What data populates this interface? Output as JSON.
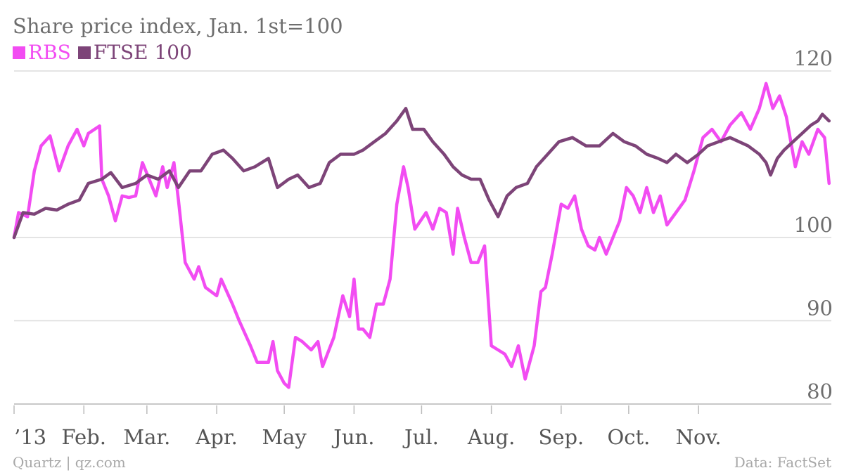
{
  "title": "Share price index, Jan. 1st=100",
  "legend": [
    {
      "label": "RBS",
      "color": "#f24cf2"
    },
    {
      "label": "FTSE 100",
      "color": "#7d4478"
    }
  ],
  "footer": {
    "source_left": "Quartz | qz.com",
    "source_right": "Data: FactSet"
  },
  "chart_data": {
    "type": "line",
    "ylim": [
      80,
      120
    ],
    "yticks": [
      80,
      90,
      100,
      120
    ],
    "ytick_labels": [
      "80",
      "90",
      "100",
      "120"
    ],
    "grid": true,
    "x_months": [
      "’13",
      "Feb.",
      "Mar.",
      "Apr.",
      "May",
      "Jun.",
      "Jul.",
      "Aug.",
      "Sep.",
      "Oct.",
      "Nov."
    ],
    "series": [
      {
        "name": "RBS",
        "color": "#f24cf2",
        "points": [
          [
            "2013-01-01",
            100.0
          ],
          [
            "2013-01-03",
            103.0
          ],
          [
            "2013-01-07",
            102.5
          ],
          [
            "2013-01-10",
            108.0
          ],
          [
            "2013-01-13",
            111.0
          ],
          [
            "2013-01-17",
            112.2
          ],
          [
            "2013-01-21",
            108.0
          ],
          [
            "2013-01-25",
            111.0
          ],
          [
            "2013-01-29",
            113.0
          ],
          [
            "2013-02-01",
            111.0
          ],
          [
            "2013-02-03",
            112.5
          ],
          [
            "2013-02-08",
            113.4
          ],
          [
            "2013-02-09",
            107.0
          ],
          [
            "2013-02-12",
            105.0
          ],
          [
            "2013-02-15",
            102.0
          ],
          [
            "2013-02-18",
            105.0
          ],
          [
            "2013-02-21",
            104.8
          ],
          [
            "2013-02-24",
            105.0
          ],
          [
            "2013-02-27",
            109.0
          ],
          [
            "2013-03-02",
            107.0
          ],
          [
            "2013-03-05",
            105.0
          ],
          [
            "2013-03-08",
            108.5
          ],
          [
            "2013-03-10",
            106.0
          ],
          [
            "2013-03-13",
            109.0
          ],
          [
            "2013-03-15",
            104.5
          ],
          [
            "2013-03-18",
            97.0
          ],
          [
            "2013-03-22",
            95.0
          ],
          [
            "2013-03-24",
            96.5
          ],
          [
            "2013-03-27",
            94.0
          ],
          [
            "2013-04-01",
            93.0
          ],
          [
            "2013-04-03",
            95.0
          ],
          [
            "2013-04-08",
            92.0
          ],
          [
            "2013-04-11",
            90.0
          ],
          [
            "2013-04-16",
            87.0
          ],
          [
            "2013-04-19",
            85.0
          ],
          [
            "2013-04-24",
            85.0
          ],
          [
            "2013-04-26",
            87.5
          ],
          [
            "2013-04-28",
            84.0
          ],
          [
            "2013-05-01",
            82.5
          ],
          [
            "2013-05-03",
            82.0
          ],
          [
            "2013-05-06",
            88.0
          ],
          [
            "2013-05-09",
            87.5
          ],
          [
            "2013-05-13",
            86.5
          ],
          [
            "2013-05-16",
            87.5
          ],
          [
            "2013-05-18",
            84.5
          ],
          [
            "2013-05-23",
            88.0
          ],
          [
            "2013-05-27",
            93.0
          ],
          [
            "2013-05-30",
            90.5
          ],
          [
            "2013-06-01",
            95.0
          ],
          [
            "2013-06-03",
            89.0
          ],
          [
            "2013-06-05",
            89.0
          ],
          [
            "2013-06-08",
            88.0
          ],
          [
            "2013-06-11",
            92.0
          ],
          [
            "2013-06-14",
            92.0
          ],
          [
            "2013-06-17",
            95.0
          ],
          [
            "2013-06-20",
            104.0
          ],
          [
            "2013-06-23",
            108.5
          ],
          [
            "2013-06-25",
            106.0
          ],
          [
            "2013-06-28",
            101.0
          ],
          [
            "2013-07-03",
            103.0
          ],
          [
            "2013-07-06",
            101.0
          ],
          [
            "2013-07-09",
            103.5
          ],
          [
            "2013-07-12",
            103.0
          ],
          [
            "2013-07-15",
            98.0
          ],
          [
            "2013-07-17",
            103.5
          ],
          [
            "2013-07-20",
            100.0
          ],
          [
            "2013-07-23",
            97.0
          ],
          [
            "2013-07-26",
            97.0
          ],
          [
            "2013-07-29",
            99.0
          ],
          [
            "2013-08-01",
            87.0
          ],
          [
            "2013-08-04",
            86.5
          ],
          [
            "2013-08-07",
            86.0
          ],
          [
            "2013-08-10",
            84.5
          ],
          [
            "2013-08-13",
            87.0
          ],
          [
            "2013-08-16",
            83.0
          ],
          [
            "2013-08-20",
            87.0
          ],
          [
            "2013-08-23",
            93.5
          ],
          [
            "2013-08-25",
            94.0
          ],
          [
            "2013-08-28",
            98.0
          ],
          [
            "2013-09-01",
            104.0
          ],
          [
            "2013-09-04",
            103.5
          ],
          [
            "2013-09-07",
            105.0
          ],
          [
            "2013-09-10",
            101.0
          ],
          [
            "2013-09-13",
            99.0
          ],
          [
            "2013-09-16",
            98.5
          ],
          [
            "2013-09-18",
            100.0
          ],
          [
            "2013-09-21",
            98.0
          ],
          [
            "2013-09-24",
            100.0
          ],
          [
            "2013-09-27",
            102.0
          ],
          [
            "2013-09-30",
            106.0
          ],
          [
            "2013-10-03",
            105.0
          ],
          [
            "2013-10-06",
            103.0
          ],
          [
            "2013-10-09",
            106.0
          ],
          [
            "2013-10-12",
            103.0
          ],
          [
            "2013-10-15",
            105.0
          ],
          [
            "2013-10-18",
            101.5
          ],
          [
            "2013-10-22",
            103.0
          ],
          [
            "2013-10-26",
            104.5
          ],
          [
            "2013-10-30",
            108.0
          ],
          [
            "2013-11-03",
            112.0
          ],
          [
            "2013-11-07",
            113.0
          ],
          [
            "2013-11-11",
            111.5
          ],
          [
            "2013-11-15",
            113.5
          ],
          [
            "2013-11-20",
            115.0
          ],
          [
            "2013-11-24",
            113.0
          ],
          [
            "2013-11-28",
            115.5
          ],
          [
            "2013-12-01",
            118.5
          ],
          [
            "2013-12-04",
            115.5
          ],
          [
            "2013-12-07",
            117.0
          ],
          [
            "2013-12-10",
            114.5
          ],
          [
            "2013-12-14",
            108.5
          ],
          [
            "2013-12-17",
            111.5
          ],
          [
            "2013-12-20",
            110.0
          ],
          [
            "2013-12-24",
            113.0
          ],
          [
            "2013-12-27",
            112.0
          ],
          [
            "2013-12-29",
            106.5
          ]
        ]
      },
      {
        "name": "FTSE 100",
        "color": "#7d4478",
        "points": [
          [
            "2013-01-01",
            100.0
          ],
          [
            "2013-01-05",
            103.0
          ],
          [
            "2013-01-10",
            102.8
          ],
          [
            "2013-01-15",
            103.5
          ],
          [
            "2013-01-20",
            103.3
          ],
          [
            "2013-01-25",
            104.0
          ],
          [
            "2013-01-30",
            104.5
          ],
          [
            "2013-02-03",
            106.5
          ],
          [
            "2013-02-09",
            107.0
          ],
          [
            "2013-02-13",
            107.8
          ],
          [
            "2013-02-18",
            106.0
          ],
          [
            "2013-02-24",
            106.5
          ],
          [
            "2013-03-01",
            107.5
          ],
          [
            "2013-03-06",
            107.0
          ],
          [
            "2013-03-11",
            108.0
          ],
          [
            "2013-03-15",
            106.0
          ],
          [
            "2013-03-20",
            108.0
          ],
          [
            "2013-03-25",
            108.0
          ],
          [
            "2013-03-30",
            110.0
          ],
          [
            "2013-04-04",
            110.5
          ],
          [
            "2013-04-08",
            109.5
          ],
          [
            "2013-04-13",
            108.0
          ],
          [
            "2013-04-18",
            108.5
          ],
          [
            "2013-04-24",
            109.5
          ],
          [
            "2013-04-28",
            106.0
          ],
          [
            "2013-05-03",
            107.0
          ],
          [
            "2013-05-07",
            107.5
          ],
          [
            "2013-05-12",
            106.0
          ],
          [
            "2013-05-17",
            106.5
          ],
          [
            "2013-05-21",
            109.0
          ],
          [
            "2013-05-26",
            110.0
          ],
          [
            "2013-06-01",
            110.0
          ],
          [
            "2013-06-05",
            110.5
          ],
          [
            "2013-06-10",
            111.5
          ],
          [
            "2013-06-15",
            112.5
          ],
          [
            "2013-06-20",
            114.0
          ],
          [
            "2013-06-24",
            115.5
          ],
          [
            "2013-06-27",
            113.0
          ],
          [
            "2013-07-02",
            113.0
          ],
          [
            "2013-07-06",
            111.5
          ],
          [
            "2013-07-11",
            110.0
          ],
          [
            "2013-07-15",
            108.5
          ],
          [
            "2013-07-19",
            107.5
          ],
          [
            "2013-07-23",
            107.0
          ],
          [
            "2013-07-27",
            107.0
          ],
          [
            "2013-07-31",
            104.5
          ],
          [
            "2013-08-04",
            102.5
          ],
          [
            "2013-08-08",
            105.0
          ],
          [
            "2013-08-12",
            106.0
          ],
          [
            "2013-08-17",
            106.5
          ],
          [
            "2013-08-21",
            108.5
          ],
          [
            "2013-08-26",
            110.0
          ],
          [
            "2013-08-31",
            111.5
          ],
          [
            "2013-09-06",
            112.0
          ],
          [
            "2013-09-12",
            111.0
          ],
          [
            "2013-09-18",
            111.0
          ],
          [
            "2013-09-24",
            112.5
          ],
          [
            "2013-09-29",
            111.5
          ],
          [
            "2013-10-04",
            111.0
          ],
          [
            "2013-10-09",
            110.0
          ],
          [
            "2013-10-14",
            109.5
          ],
          [
            "2013-10-18",
            109.0
          ],
          [
            "2013-10-22",
            110.0
          ],
          [
            "2013-10-27",
            109.0
          ],
          [
            "2013-11-01",
            110.0
          ],
          [
            "2013-11-05",
            111.0
          ],
          [
            "2013-11-10",
            111.5
          ],
          [
            "2013-11-15",
            112.0
          ],
          [
            "2013-11-19",
            111.5
          ],
          [
            "2013-11-23",
            111.0
          ],
          [
            "2013-11-28",
            110.0
          ],
          [
            "2013-12-01",
            109.0
          ],
          [
            "2013-12-03",
            107.5
          ],
          [
            "2013-12-06",
            109.5
          ],
          [
            "2013-12-09",
            110.5
          ],
          [
            "2013-12-13",
            111.5
          ],
          [
            "2013-12-17",
            112.5
          ],
          [
            "2013-12-21",
            113.5
          ],
          [
            "2013-12-24",
            114.0
          ],
          [
            "2013-12-26",
            114.8
          ],
          [
            "2013-12-29",
            114.0
          ]
        ]
      }
    ]
  }
}
